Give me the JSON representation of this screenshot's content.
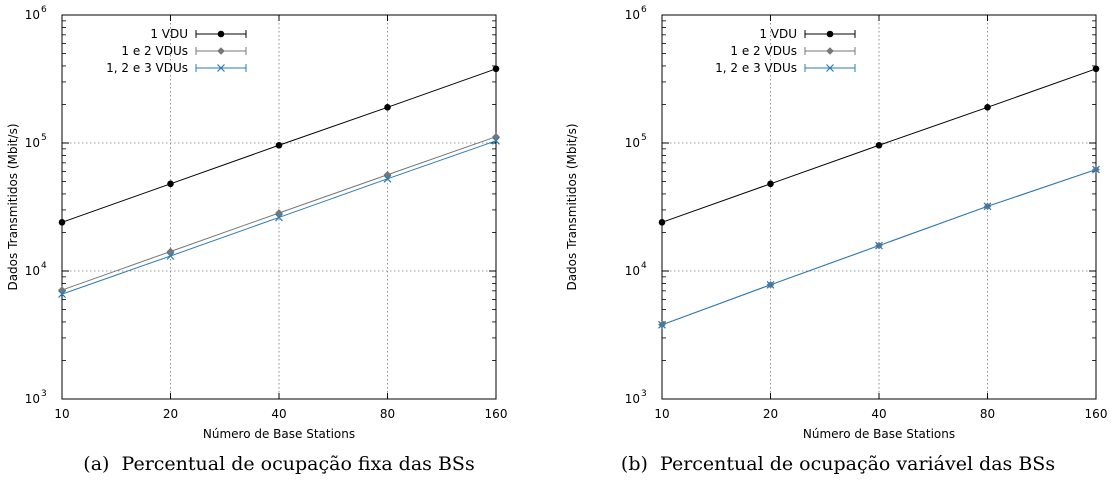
{
  "chart_data": [
    {
      "type": "line",
      "caption_tag": "(a)",
      "caption": "Percentual de ocupação fixa das BSs",
      "xlabel": "Número de Base Stations",
      "ylabel": "Dados Transmitidos (Mbit/s)",
      "x_scale": "log2",
      "y_scale": "log10",
      "x": [
        10,
        20,
        40,
        80,
        160
      ],
      "xticks": [
        "10",
        "20",
        "40",
        "80",
        "160"
      ],
      "ylim": [
        1000,
        1000000
      ],
      "yticks": [
        {
          "base": "10",
          "exp": "3",
          "value": 1000
        },
        {
          "base": "10",
          "exp": "4",
          "value": 10000
        },
        {
          "base": "10",
          "exp": "5",
          "value": 100000
        },
        {
          "base": "10",
          "exp": "6",
          "value": 1000000
        }
      ],
      "grid": true,
      "legend_position": "top-left",
      "series": [
        {
          "name": "1 VDU",
          "color": "#000000",
          "marker": "circle",
          "values": [
            24000,
            48000,
            96000,
            190000,
            380000
          ]
        },
        {
          "name": "1 e 2 VDUs",
          "color": "#777777",
          "marker": "diamond",
          "values": [
            7100,
            14200,
            28400,
            56500,
            112000
          ]
        },
        {
          "name": "1, 2 e 3 VDUs",
          "color": "#2b7bba",
          "marker": "x",
          "values": [
            6600,
            13100,
            26200,
            52500,
            104000
          ]
        }
      ]
    },
    {
      "type": "line",
      "caption_tag": "(b)",
      "caption": "Percentual de ocupação variável das BSs",
      "xlabel": "Número de Base Stations",
      "ylabel": "Dados Transmitidos (Mbit/s)",
      "x_scale": "log2",
      "y_scale": "log10",
      "x": [
        10,
        20,
        40,
        80,
        160
      ],
      "xticks": [
        "10",
        "20",
        "40",
        "80",
        "160"
      ],
      "ylim": [
        1000,
        1000000
      ],
      "yticks": [
        {
          "base": "10",
          "exp": "3",
          "value": 1000
        },
        {
          "base": "10",
          "exp": "4",
          "value": 10000
        },
        {
          "base": "10",
          "exp": "5",
          "value": 100000
        },
        {
          "base": "10",
          "exp": "6",
          "value": 1000000
        }
      ],
      "grid": true,
      "legend_position": "top-left",
      "series": [
        {
          "name": "1 VDU",
          "color": "#000000",
          "marker": "circle",
          "values": [
            24000,
            48000,
            96000,
            190000,
            380000
          ]
        },
        {
          "name": "1 e 2 VDUs",
          "color": "#777777",
          "marker": "diamond",
          "values": [
            3800,
            7800,
            15800,
            32000,
            62000
          ]
        },
        {
          "name": "1, 2 e 3 VDUs",
          "color": "#2b7bba",
          "marker": "x",
          "values": [
            3800,
            7800,
            15800,
            32000,
            62000
          ]
        }
      ]
    }
  ]
}
